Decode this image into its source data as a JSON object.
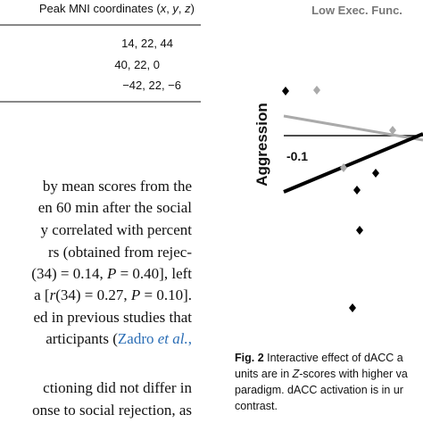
{
  "table": {
    "header": [
      "Peak MNI coordinates (",
      "x",
      ", ",
      "y",
      ", ",
      "z",
      ")"
    ],
    "rows": [
      "14, 22, 44",
      "40, 22, 0",
      "−42, 22, −6"
    ]
  },
  "body": {
    "lines": [
      "by mean scores from the",
      "en 60 min after the social",
      "y correlated with percent",
      "rs (obtained from rejec-",
      [
        "(34) = 0.14, ",
        "P",
        " = 0.40], left"
      ],
      [
        "a [",
        "r",
        "(34) = 0.27, ",
        "P",
        " = 0.10]."
      ],
      "ed in previous studies that",
      [
        "articipants (",
        "Zadro ",
        "et al.",
        ","
      ],
      "ctioning did not differ in",
      "onse to social rejection, as"
    ]
  },
  "figure": {
    "title": "Low Exec. Func.",
    "y_label": "Aggression",
    "x_tick": "-0.1"
  },
  "caption": {
    "lines": [
      [
        "Fig. 2",
        " Interactive effect of dACC a"
      ],
      [
        "units are in ",
        "Z",
        "-scores with higher va"
      ],
      "paradigm. dACC activation is in ur",
      "contrast."
    ]
  }
}
